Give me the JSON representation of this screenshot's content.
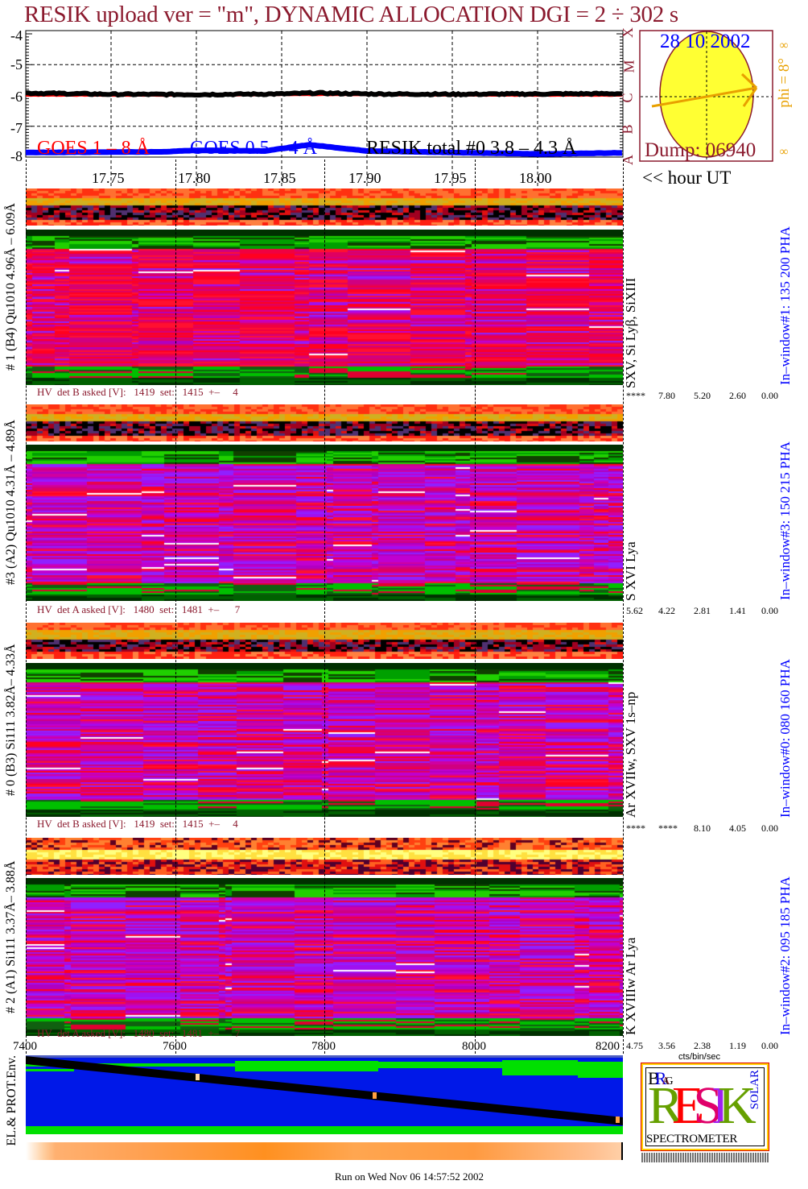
{
  "title": "RESIK upload ver = \"m\", DYNAMIC ALLOCATION  DGI =   2 ÷ 302 s",
  "colors": {
    "title": "#8b1a2e",
    "goes_long": "#ff0000",
    "goes_short": "#0000ff",
    "resik_total": "#000000",
    "window_label": "#0000ff",
    "phi": "#e8a000",
    "sun": "#ffff33",
    "histogram": "#b00000",
    "pha": "#0000ff"
  },
  "chart_data": [
    {
      "type": "line",
      "title": "",
      "xlabel": "<< hour UT",
      "ylabel": "",
      "xlim": [
        17.7,
        18.05
      ],
      "ylim": [
        -8,
        -4
      ],
      "grid": true,
      "xticks": [
        "17.75",
        "17.80",
        "17.85",
        "17.90",
        "17.95",
        "18.00"
      ],
      "yticks": [
        "-4",
        "-5",
        "-6",
        "-7",
        "-8"
      ],
      "flare_classes": [
        "A",
        "B",
        "C",
        "M",
        "X"
      ],
      "legend_placement": "bottom",
      "series": [
        {
          "name": "GOES 1 – 8 Å",
          "color": "#ff0000",
          "x": [
            17.7,
            17.75,
            17.8,
            17.85,
            17.9,
            17.95,
            18.0,
            18.05
          ],
          "y": [
            -6.0,
            -6.0,
            -6.0,
            -5.98,
            -5.98,
            -6.0,
            -6.0,
            -6.0
          ]
        },
        {
          "name": "GOES 0.5 – 4 Å",
          "color": "#0000ff",
          "x": [
            17.7,
            17.78,
            17.8,
            17.84,
            17.866,
            17.9,
            17.95,
            18.0,
            18.05
          ],
          "y": [
            -7.85,
            -7.83,
            -7.78,
            -7.8,
            -7.6,
            -7.8,
            -7.85,
            -7.9,
            -7.86
          ]
        },
        {
          "name": "RESIK total #0  3.8 – 4.3 Å",
          "color": "#000000",
          "x": [
            17.7,
            17.75,
            17.8,
            17.85,
            17.87,
            17.9,
            17.95,
            18.0,
            18.05
          ],
          "y": [
            -5.92,
            -5.96,
            -5.97,
            -5.95,
            -5.92,
            -5.95,
            -5.96,
            -5.95,
            -5.94
          ]
        }
      ]
    },
    {
      "type": "heatmap",
      "xlabel": "",
      "xticks": [
        "7400",
        "7600",
        "7800",
        "8000",
        "8200"
      ],
      "xlim": [
        7400,
        8200
      ]
    }
  ],
  "sun": {
    "date": "28 10 2002",
    "dump": "Dump: 06940",
    "phi": "phi =  8°",
    "inf": "∞"
  },
  "hour_label": "<< hour UT",
  "detectors": [
    {
      "label": "# 1 (B4) Qu1010 4.96Å – 6.09Å",
      "hv": "HV  det B asked [V]:   1419  set:   1415  +–     4",
      "lines": "SXV, Si Lyβ, SiXIII",
      "window": "In–window#1:  135 200 PHA",
      "scale": [
        "****",
        "7.80",
        "5.20",
        "2.60",
        "0.00"
      ]
    },
    {
      "label": "#3 (A2) Qu1010  4.31Å – 4.89Å",
      "hv": "HV  det A asked [V]:   1480  set:   1481  +–      7",
      "lines": "S XVI Lya",
      "window": "In–window#3:  150 215 PHA",
      "scale": [
        "5.62",
        "4.22",
        "2.81",
        "1.41",
        "0.00"
      ]
    },
    {
      "label": "# 0 (B3) Si111  3.82Å– 4.33Å",
      "hv": "HV  det B asked [V]:   1419  set:   1415  +–     4",
      "lines": "Ar XVIIw,  SXV 1s–np",
      "window": "In–window#0:  080 160 PHA",
      "scale": [
        "****",
        "****",
        "8.10",
        "4.05",
        "0.00"
      ]
    },
    {
      "label": "# 2 (A1) Si111  3.37Å– 3.88Å",
      "hv": "HV  det A asked [V]:   1480  set:   1481  +–      7",
      "lines": "K XVIIIw  Ar Lya",
      "window": "In–window#2:  095 185 PHA",
      "scale": [
        "4.75",
        "3.56",
        "2.38",
        "1.19",
        "0.00"
      ]
    }
  ],
  "units": "cts/bin/sec",
  "env_label": "EL.& PROT.Env.",
  "logo": {
    "bragg": "BRAGG",
    "resik": "RESIK",
    "solar": "SOLAR",
    "spectrometer": "SPECTROMETER"
  },
  "footer": "Run on Wed Nov 06 14:57:52 2002"
}
